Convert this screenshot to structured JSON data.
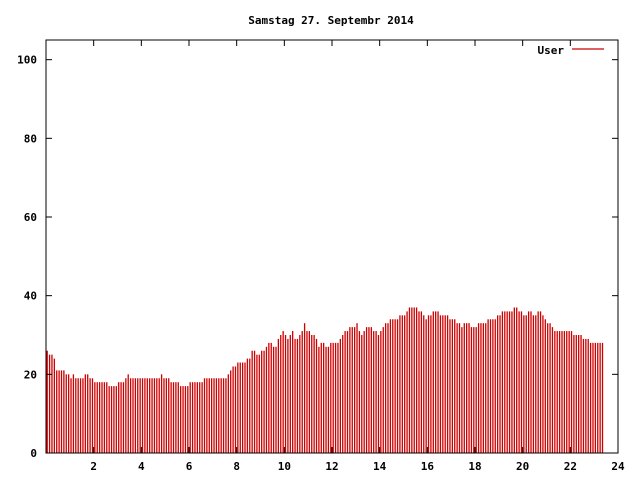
{
  "chart_data": {
    "type": "bar",
    "title": "Samstag 27. Septembr 2014",
    "xlabel": "",
    "ylabel": "",
    "xlim": [
      0,
      24
    ],
    "ylim": [
      0,
      105
    ],
    "x_ticks": [
      2,
      4,
      6,
      8,
      10,
      12,
      14,
      16,
      18,
      20,
      22,
      24
    ],
    "y_ticks": [
      0,
      20,
      40,
      60,
      80,
      100
    ],
    "legend_position": "top-right",
    "grid": false,
    "colors": {
      "series": "#cc0000",
      "axes": "#000000",
      "background": "#ffffff"
    },
    "series": [
      {
        "name": "User",
        "x_step_hours": 0.1,
        "values": [
          26,
          25,
          25,
          24,
          21,
          21,
          21,
          21,
          20,
          20,
          19,
          20,
          19,
          19,
          19,
          19,
          20,
          20,
          19,
          19,
          18,
          18,
          18,
          18,
          18,
          18,
          17,
          17,
          17,
          17,
          18,
          18,
          18,
          19,
          20,
          19,
          19,
          19,
          19,
          19,
          19,
          19,
          19,
          19,
          19,
          19,
          19,
          19,
          20,
          19,
          19,
          19,
          18,
          18,
          18,
          18,
          17,
          17,
          17,
          17,
          18,
          18,
          18,
          18,
          18,
          18,
          19,
          19,
          19,
          19,
          19,
          19,
          19,
          19,
          19,
          19,
          20,
          21,
          22,
          22,
          23,
          23,
          23,
          23,
          24,
          24,
          26,
          26,
          25,
          25,
          26,
          26,
          27,
          28,
          28,
          27,
          27,
          29,
          30,
          31,
          30,
          29,
          30,
          31,
          29,
          29,
          30,
          31,
          33,
          31,
          31,
          30,
          30,
          29,
          27,
          28,
          28,
          27,
          27,
          28,
          28,
          28,
          28,
          29,
          30,
          31,
          31,
          32,
          32,
          32,
          33,
          31,
          30,
          31,
          32,
          32,
          32,
          31,
          31,
          30,
          31,
          32,
          33,
          33,
          34,
          34,
          34,
          34,
          35,
          35,
          35,
          36,
          37,
          37,
          37,
          37,
          36,
          36,
          35,
          34,
          35,
          35,
          36,
          36,
          36,
          35,
          35,
          35,
          35,
          34,
          34,
          34,
          33,
          33,
          32,
          33,
          33,
          33,
          32,
          32,
          32,
          33,
          33,
          33,
          33,
          34,
          34,
          34,
          34,
          35,
          35,
          36,
          36,
          36,
          36,
          36,
          37,
          37,
          36,
          36,
          35,
          35,
          36,
          36,
          35,
          35,
          36,
          36,
          35,
          34,
          33,
          33,
          32,
          31,
          31,
          31,
          31,
          31,
          31,
          31,
          31,
          30,
          30,
          30,
          30,
          29,
          29,
          29,
          28,
          28,
          28,
          28,
          28,
          28
        ]
      }
    ]
  }
}
